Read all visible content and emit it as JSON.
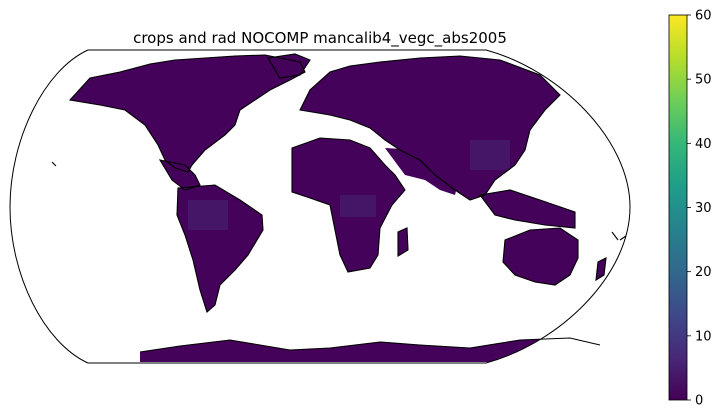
{
  "title": "crops and rad NOCOMP mancalib4_vegc_abs2005",
  "colorbar": {
    "colormap": "viridis",
    "min": 0,
    "max": 60,
    "ticks": [
      "0",
      "10",
      "20",
      "30",
      "40",
      "50",
      "60"
    ],
    "colors": [
      "#440154",
      "#482878",
      "#3e4989",
      "#31688e",
      "#26828e",
      "#1f9e89",
      "#35b779",
      "#6ece58",
      "#b5de2b",
      "#fde725"
    ]
  },
  "map": {
    "projection": "robinson",
    "field_color": "#44025a",
    "field_color_high": "#472d7b",
    "coastline_color": "#000000",
    "background": "#ffffff"
  }
}
